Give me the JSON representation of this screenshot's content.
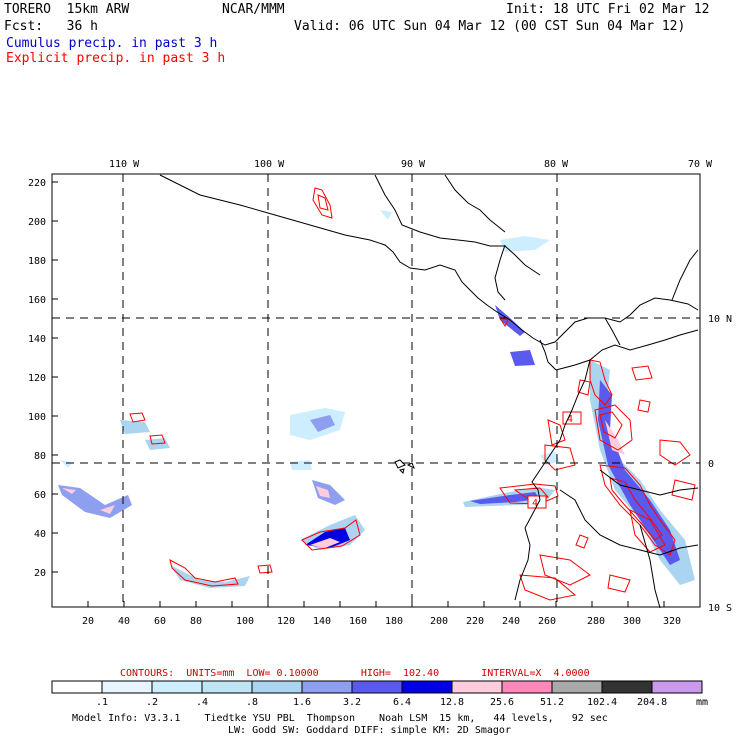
{
  "header": {
    "model": "TORERO  15km ARW",
    "org": "NCAR/MMM",
    "init": "Init: 18 UTC Fri 02 Mar 12",
    "fcst": "Fcst:   36 h",
    "valid": "Valid: 06 UTC Sun 04 Mar 12 (00 CST Sun 04 Mar 12)",
    "legend_cumulus": "Cumulus precip. in past 3 h",
    "legend_explicit": "Explicit precip. in past 3 h"
  },
  "colors": {
    "cumulus": "#0000cc",
    "explicit": "#ff0000",
    "coast": "#000000"
  },
  "map": {
    "lon_labels": [
      "110 W",
      "100 W",
      "90 W",
      "80 W",
      "70 W"
    ],
    "lat_labels": [
      "10 N",
      "0",
      "10 S"
    ],
    "x_ticks": [
      "20",
      "40",
      "60",
      "80",
      "100",
      "120",
      "140",
      "160",
      "180",
      "200",
      "220",
      "240",
      "260",
      "280",
      "300",
      "320"
    ],
    "y_ticks": [
      "20",
      "40",
      "60",
      "80",
      "100",
      "120",
      "140",
      "160",
      "180",
      "200",
      "220"
    ],
    "contour_label": "4"
  },
  "colorbar": {
    "info": "CONTOURS:  UNITS=mm  LOW= 0.10000       HIGH=  102.40       INTERVAL=X  4.0000",
    "levels": [
      ".1",
      ".2",
      ".4",
      ".8",
      "1.6",
      "3.2",
      "6.4",
      "12.8",
      "25.6",
      "51.2",
      "102.4",
      "204.8"
    ],
    "colors": [
      "#ffffff",
      "#e6f5ff",
      "#cceeff",
      "#bfe5f5",
      "#aad4f0",
      "#8f9ff0",
      "#5a5aee",
      "#0000e6",
      "#ffccdd",
      "#ff88bb",
      "#a9a9a9",
      "#333333",
      "#cc99ee"
    ],
    "unit": "mm"
  },
  "footer": {
    "line1": "Model Info: V3.3.1    Tiedtke YSU PBL  Thompson    Noah LSM  15 km,   44 levels,   92 sec",
    "line2": "LW: Godd SW: Goddard DIFF: simple KM: 2D Smagor"
  }
}
